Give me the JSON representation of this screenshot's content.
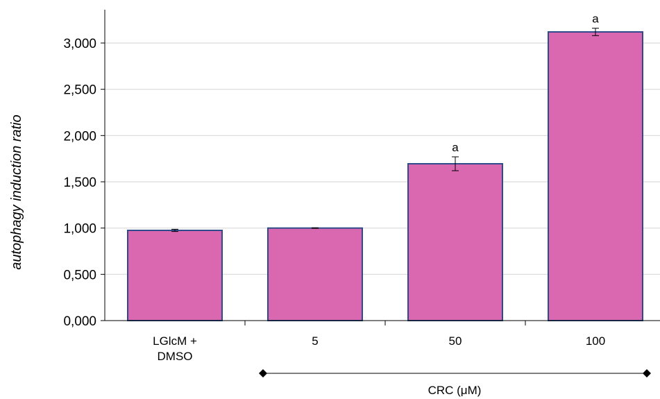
{
  "chart_data": {
    "type": "bar",
    "categories": [
      [
        "LGlcM +",
        "DMSO"
      ],
      [
        "5"
      ],
      [
        "50"
      ],
      [
        "100"
      ]
    ],
    "values": [
      0.975,
      1.0,
      1.695,
      3.12
    ],
    "errors": [
      0.012,
      0.003,
      0.075,
      0.04
    ],
    "significance": [
      "",
      "",
      "a",
      "a"
    ],
    "ylabel": "autophagy induction ratio",
    "xlabel": "",
    "ylim": [
      0,
      3.0
    ],
    "yticks": [
      "0,000",
      "0,500",
      "1,000",
      "1,500",
      "2,000",
      "2,500",
      "3,000"
    ],
    "grid": true,
    "group_label": "CRC (μM)",
    "colors": {
      "bar_fill": "#d968b0",
      "bar_stroke": "#2e4a8a",
      "grid": "#d9d9d9",
      "axis": "#000000"
    }
  }
}
